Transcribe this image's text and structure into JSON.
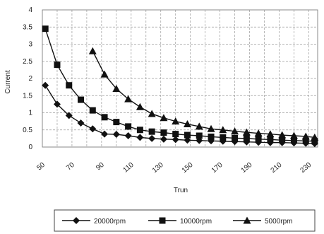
{
  "chart_data": {
    "type": "line",
    "xlabel": "Trun",
    "ylabel": "Current",
    "xlim": [
      50,
      236
    ],
    "ylim": [
      0,
      4
    ],
    "x_ticks": [
      "50",
      "70",
      "90",
      "110",
      "130",
      "150",
      "170",
      "190",
      "210",
      "230"
    ],
    "y_ticks": [
      "0",
      "0.5",
      "1",
      "1.5",
      "2",
      "2.5",
      "3",
      "3.5",
      "4"
    ],
    "grid": true,
    "legend_position": "bottom",
    "series": [
      {
        "name": "20000rpm",
        "marker": "diamond",
        "x": [
          52,
          60,
          68,
          76,
          84,
          92,
          100,
          108,
          116,
          124,
          132,
          140,
          148,
          156,
          164,
          172,
          180,
          188,
          196,
          204,
          212,
          220,
          228,
          234
        ],
        "y": [
          1.8,
          1.25,
          0.92,
          0.7,
          0.53,
          0.38,
          0.37,
          0.33,
          0.28,
          0.25,
          0.23,
          0.22,
          0.2,
          0.19,
          0.18,
          0.17,
          0.16,
          0.15,
          0.14,
          0.13,
          0.13,
          0.12,
          0.11,
          0.1
        ]
      },
      {
        "name": "10000rpm",
        "marker": "square",
        "x": [
          52,
          60,
          68,
          76,
          84,
          92,
          100,
          108,
          116,
          124,
          132,
          140,
          148,
          156,
          164,
          172,
          180,
          188,
          196,
          204,
          212,
          220,
          228,
          234
        ],
        "y": [
          3.45,
          2.4,
          1.8,
          1.38,
          1.07,
          0.87,
          0.73,
          0.6,
          0.5,
          0.45,
          0.42,
          0.38,
          0.35,
          0.33,
          0.3,
          0.28,
          0.26,
          0.25,
          0.23,
          0.22,
          0.2,
          0.19,
          0.18,
          0.17
        ]
      },
      {
        "name": "5000rpm",
        "marker": "triangle",
        "x": [
          84,
          92,
          100,
          108,
          116,
          124,
          132,
          140,
          148,
          156,
          164,
          172,
          180,
          188,
          196,
          204,
          212,
          220,
          228,
          234
        ],
        "y": [
          2.8,
          2.12,
          1.7,
          1.4,
          1.17,
          0.97,
          0.85,
          0.75,
          0.67,
          0.6,
          0.53,
          0.5,
          0.46,
          0.43,
          0.4,
          0.38,
          0.35,
          0.33,
          0.31,
          0.28
        ]
      }
    ]
  }
}
